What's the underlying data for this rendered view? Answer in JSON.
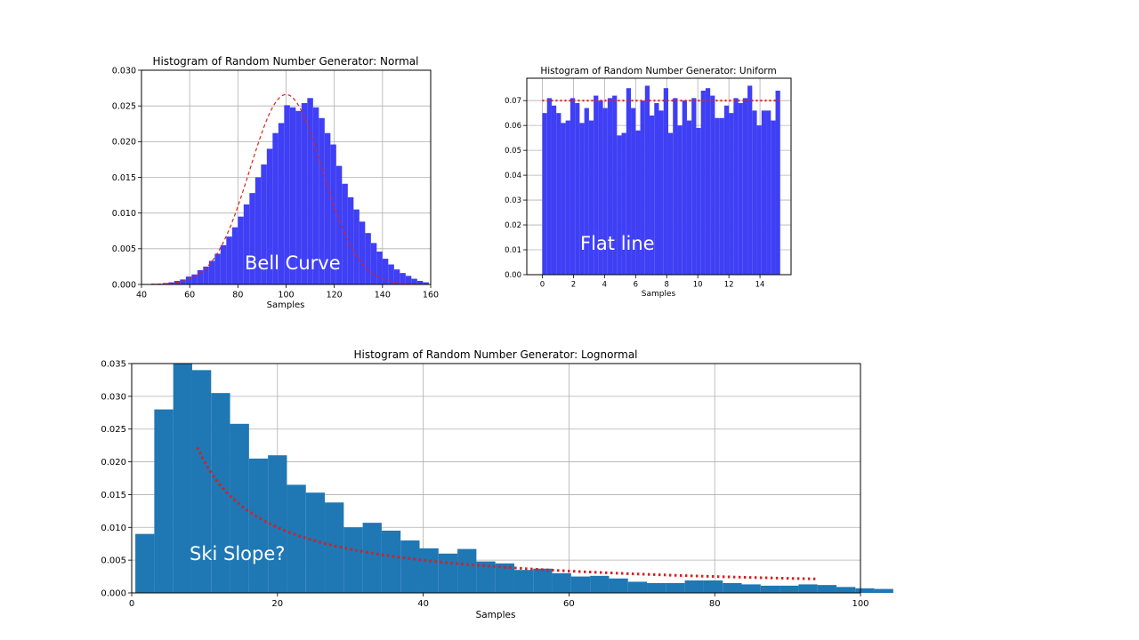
{
  "chart_data": [
    {
      "type": "bar",
      "id": "normal",
      "title": "Histogram of Random Number Generator: Normal",
      "xlabel": "Samples",
      "ylabel": "",
      "xlim": [
        40,
        160
      ],
      "ylim": [
        0,
        0.03
      ],
      "xticks": [
        "40",
        "60",
        "80",
        "100",
        "120",
        "140",
        "160"
      ],
      "yticks": [
        "0.000",
        "0.005",
        "0.010",
        "0.015",
        "0.020",
        "0.025",
        "0.030"
      ],
      "grid": true,
      "bar_color": "#3f3ff5",
      "curve_color": "#e02020",
      "annotation": "Bell Curve",
      "bins": {
        "start": 44,
        "width": 2.4
      },
      "values": [
        0.0001,
        0.0001,
        0.0002,
        0.0003,
        0.0005,
        0.0007,
        0.0011,
        0.0014,
        0.002,
        0.0025,
        0.0033,
        0.0043,
        0.0055,
        0.0067,
        0.008,
        0.0095,
        0.0112,
        0.0128,
        0.015,
        0.0168,
        0.019,
        0.0212,
        0.0226,
        0.0251,
        0.0248,
        0.0243,
        0.0254,
        0.0261,
        0.0248,
        0.0233,
        0.0212,
        0.0196,
        0.0166,
        0.0141,
        0.0122,
        0.0105,
        0.0088,
        0.0072,
        0.0058,
        0.0046,
        0.0036,
        0.0028,
        0.0021,
        0.0016,
        0.0012,
        0.0008,
        0.0005,
        0.0003
      ],
      "curve": {
        "mean": 100,
        "sd": 15
      }
    },
    {
      "type": "bar",
      "id": "uniform",
      "title": "Histogram of Random Number Generator: Uniform",
      "xlabel": "Samples",
      "ylabel": "",
      "xlim": [
        -1,
        16
      ],
      "ylim": [
        0,
        0.079
      ],
      "xticks": [
        "0",
        "2",
        "4",
        "6",
        "8",
        "10",
        "12",
        "14"
      ],
      "yticks": [
        "0.00",
        "0.01",
        "0.02",
        "0.03",
        "0.04",
        "0.05",
        "0.06",
        "0.07"
      ],
      "grid": true,
      "bar_color": "#3f3ff5",
      "curve_color": "#e02020",
      "annotation": "Flat line",
      "bins": {
        "start": 0,
        "width": 0.3
      },
      "values": [
        0.065,
        0.071,
        0.068,
        0.065,
        0.061,
        0.062,
        0.071,
        0.069,
        0.061,
        0.067,
        0.062,
        0.072,
        0.07,
        0.067,
        0.071,
        0.072,
        0.056,
        0.057,
        0.075,
        0.067,
        0.058,
        0.07,
        0.076,
        0.064,
        0.069,
        0.066,
        0.075,
        0.057,
        0.071,
        0.06,
        0.07,
        0.062,
        0.071,
        0.059,
        0.074,
        0.075,
        0.072,
        0.063,
        0.063,
        0.068,
        0.065,
        0.071,
        0.069,
        0.071,
        0.076,
        0.066,
        0.06,
        0.066,
        0.066,
        0.062,
        0.074
      ],
      "reference_y": 0.07
    },
    {
      "type": "bar",
      "id": "lognormal",
      "title": "Histogram of Random Number Generator: Lognormal",
      "xlabel": "Samples",
      "ylabel": "",
      "xlim": [
        0,
        100
      ],
      "ylim": [
        0,
        0.035
      ],
      "xticks": [
        "0",
        "20",
        "40",
        "60",
        "80",
        "100"
      ],
      "yticks": [
        "0.000",
        "0.005",
        "0.010",
        "0.015",
        "0.020",
        "0.025",
        "0.030",
        "0.035"
      ],
      "grid": true,
      "bar_color": "#1f77b4",
      "curve_color": "#d62020",
      "annotation": "Ski Slope?",
      "bins": {
        "start": 0.5,
        "width": 2.6
      },
      "values": [
        0.009,
        0.028,
        0.0355,
        0.034,
        0.0305,
        0.0258,
        0.0205,
        0.021,
        0.0165,
        0.0153,
        0.0138,
        0.01,
        0.0107,
        0.0095,
        0.008,
        0.0068,
        0.006,
        0.0067,
        0.0048,
        0.0045,
        0.0035,
        0.0037,
        0.003,
        0.0025,
        0.0026,
        0.0022,
        0.0017,
        0.0015,
        0.0015,
        0.0019,
        0.0019,
        0.0015,
        0.0013,
        0.0011,
        0.0011,
        0.0013,
        0.0012,
        0.0009,
        0.0007,
        0.0006
      ],
      "curve": {
        "k": 0.2,
        "x_from": 9,
        "x_to": 94
      }
    }
  ]
}
